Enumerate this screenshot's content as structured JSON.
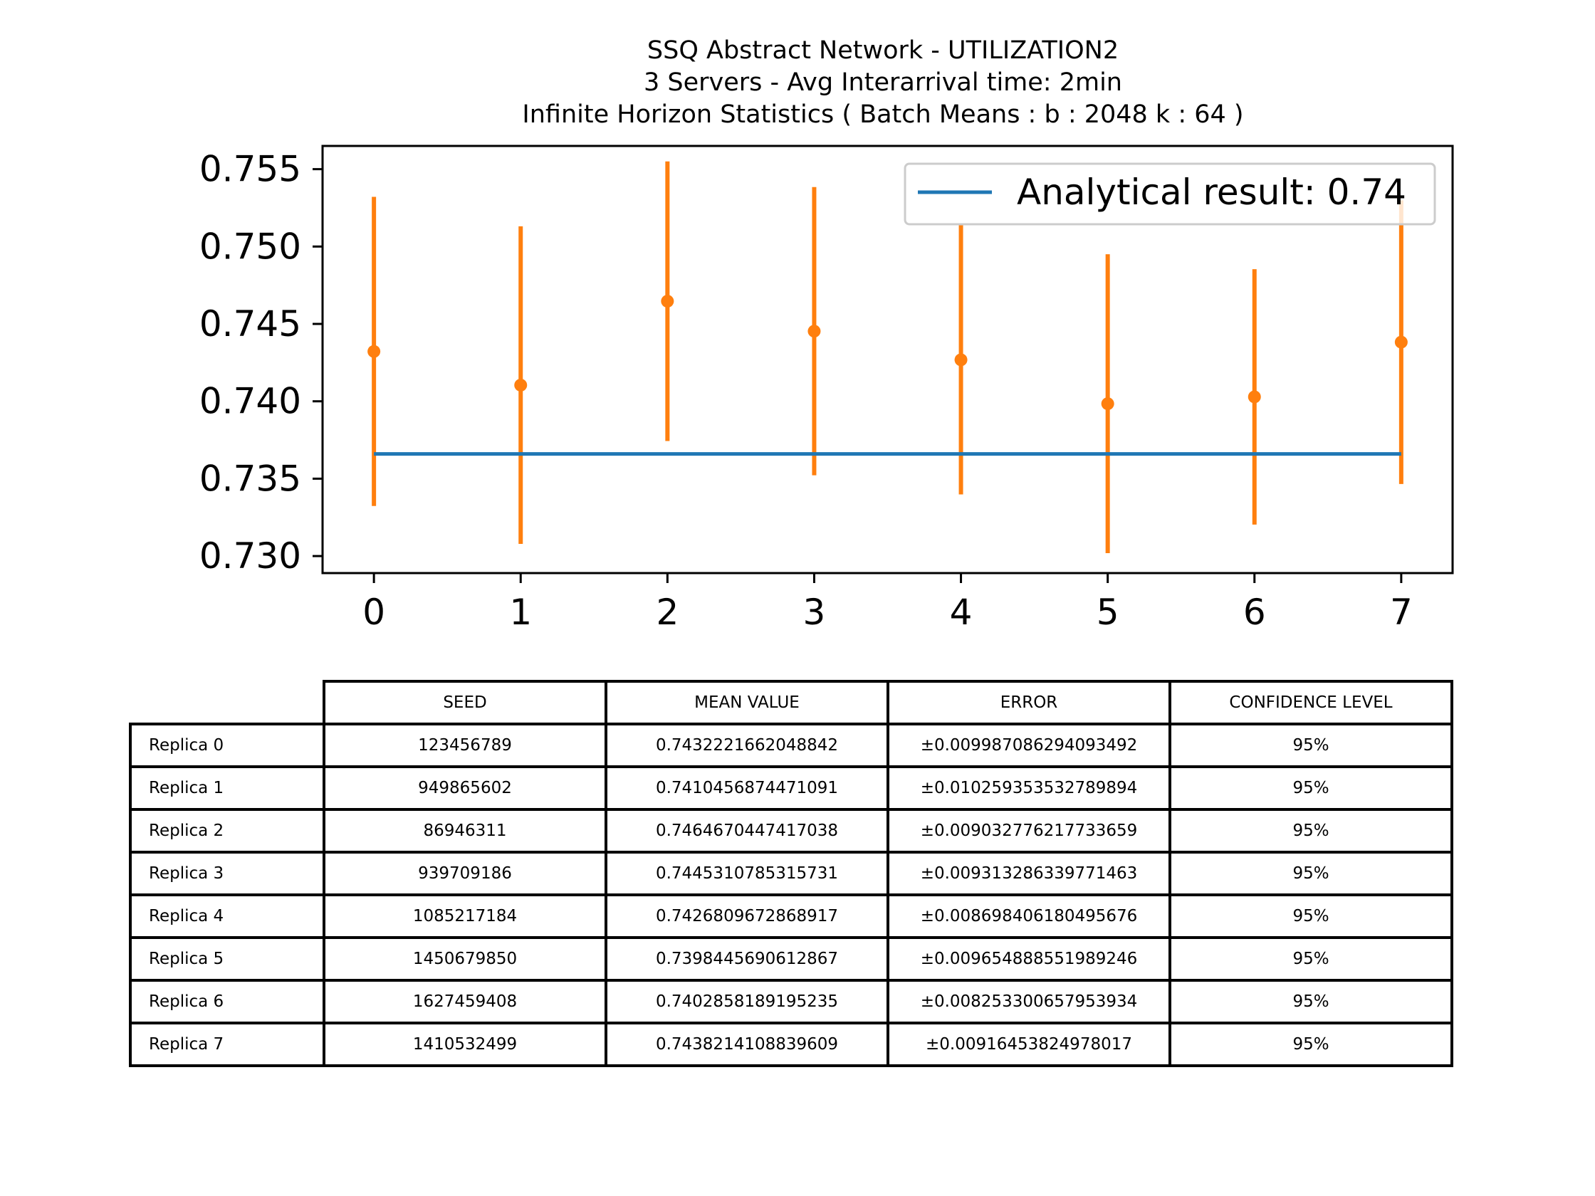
{
  "chart_data": {
    "type": "errorbar",
    "title_lines": [
      "SSQ Abstract Network - UTILIZATION2",
      "3 Servers -  Avg Interarrival time: 2min",
      "Infinite Horizon Statistics ( Batch Means : b : 2048  k : 64 )"
    ],
    "x": [
      0,
      1,
      2,
      3,
      4,
      5,
      6,
      7
    ],
    "x_ticks": [
      "0",
      "1",
      "2",
      "3",
      "4",
      "5",
      "6",
      "7"
    ],
    "y_ticks": [
      "0.730",
      "0.735",
      "0.740",
      "0.745",
      "0.750",
      "0.755"
    ],
    "xlim": [
      -0.35,
      7.35
    ],
    "ylim": [
      0.7289,
      0.7565
    ],
    "means": [
      0.7432221662048842,
      0.7410456874471091,
      0.7464670447417038,
      0.7445310785315731,
      0.7426809672868917,
      0.7398445690612867,
      0.7402858189195235,
      0.7438214108839609
    ],
    "errors": [
      0.009987086294093492,
      0.010259353532789894,
      0.009032776217733659,
      0.009313286339771463,
      0.008698406180495676,
      0.009654888551989246,
      0.008253300657953934,
      0.00916453824978017
    ],
    "analytical_value": 0.7366,
    "legend": {
      "label": "Analytical result:   0.74",
      "position": "top-right"
    },
    "colors": {
      "analytical": "#1f77b4",
      "replica": "#ff7f0e"
    }
  },
  "table": {
    "headers": [
      "SEED",
      "MEAN VALUE",
      "ERROR",
      "CONFIDENCE LEVEL"
    ],
    "rows": [
      {
        "label": "Replica 0",
        "cells": [
          "123456789",
          "0.7432221662048842",
          "±0.009987086294093492",
          "95%"
        ]
      },
      {
        "label": "Replica 1",
        "cells": [
          "949865602",
          "0.7410456874471091",
          "±0.010259353532789894",
          "95%"
        ]
      },
      {
        "label": "Replica 2",
        "cells": [
          "86946311",
          "0.7464670447417038",
          "±0.009032776217733659",
          "95%"
        ]
      },
      {
        "label": "Replica 3",
        "cells": [
          "939709186",
          "0.7445310785315731",
          "±0.009313286339771463",
          "95%"
        ]
      },
      {
        "label": "Replica 4",
        "cells": [
          "1085217184",
          "0.7426809672868917",
          "±0.008698406180495676",
          "95%"
        ]
      },
      {
        "label": "Replica 5",
        "cells": [
          "1450679850",
          "0.7398445690612867",
          "±0.009654888551989246",
          "95%"
        ]
      },
      {
        "label": "Replica 6",
        "cells": [
          "1627459408",
          "0.7402858189195235",
          "±0.008253300657953934",
          "95%"
        ]
      },
      {
        "label": "Replica 7",
        "cells": [
          "1410532499",
          "0.7438214108839609",
          "±0.00916453824978017",
          "95%"
        ]
      }
    ]
  }
}
